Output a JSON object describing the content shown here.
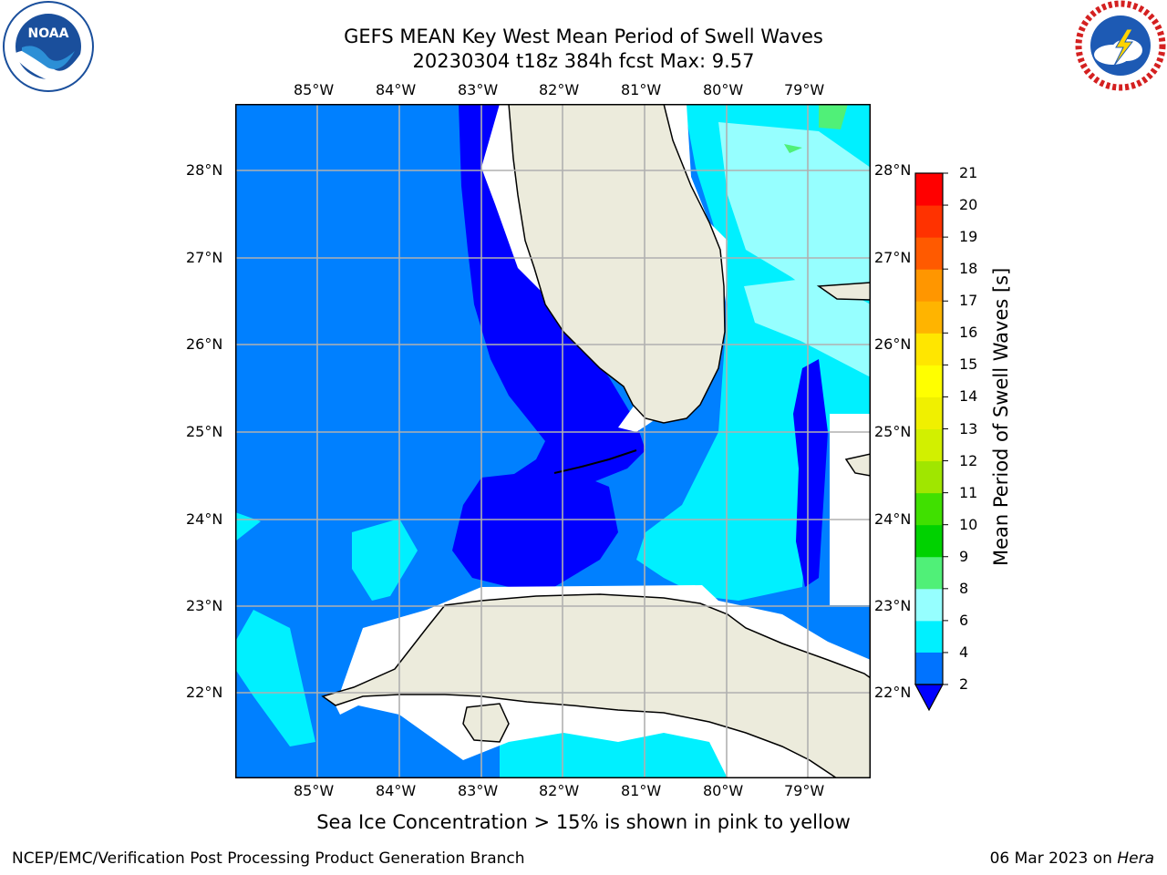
{
  "header": {
    "title_line1": "GEFS MEAN Key West Mean Period of Swell Waves",
    "title_line2": "20230304 t18z 384h fcst   Max: 9.57"
  },
  "logos": {
    "left": {
      "text": "NOAA",
      "ring_text": "NATIONAL OCEANIC AND ATMOSPHERIC ADMINISTRATION · U.S. DEPARTMENT OF COMMERCE",
      "color": "#1a4f9c"
    },
    "right": {
      "ring_text": "NATIONAL WEATHER SERVICE",
      "color": "#d42020"
    }
  },
  "map": {
    "lon_labels": [
      "85°W",
      "84°W",
      "83°W",
      "82°W",
      "81°W",
      "80°W",
      "79°W"
    ],
    "lat_labels": [
      "28°N",
      "27°N",
      "26°N",
      "25°N",
      "24°N",
      "23°N",
      "22°N"
    ],
    "extent": {
      "lon_min": -86.0,
      "lon_max": -78.25,
      "lat_min": 21.0,
      "lat_max": 28.75
    },
    "colors": {
      "land": "#ecebdc",
      "ocean_low": "#0080ff",
      "gridline": "#b0b0b0"
    }
  },
  "colorbar": {
    "label": "Mean Period of Swell Waves [s]",
    "ticks": [
      "2",
      "4",
      "6",
      "8",
      "9",
      "10",
      "11",
      "12",
      "13",
      "14",
      "15",
      "16",
      "17",
      "18",
      "19",
      "20",
      "21"
    ],
    "colors": [
      "#0073ff",
      "#00c8ff",
      "#00f0ff",
      "#96ffff",
      "#50f078",
      "#00d200",
      "#40e000",
      "#a0e600",
      "#d2f000",
      "#f0f000",
      "#ffff00",
      "#ffe600",
      "#ffb400",
      "#ff9600",
      "#ff5a00",
      "#ff3200",
      "#ff0000"
    ],
    "under_color": "#0000ff"
  },
  "note": "Sea Ice Concentration > 15% is shown in pink to yellow",
  "footer": {
    "left": "NCEP/EMC/Verification Post Processing Product Generation Branch",
    "date": "06 Mar 2023 on ",
    "host": "Hera"
  }
}
